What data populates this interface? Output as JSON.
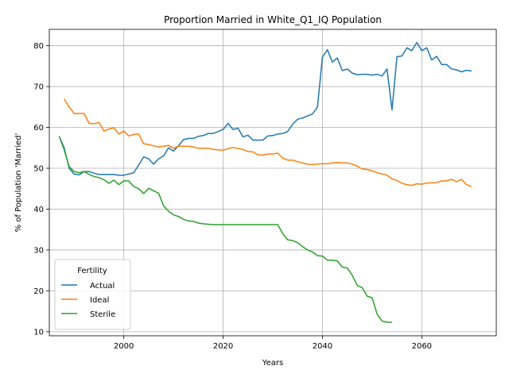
{
  "chart_data": {
    "type": "line",
    "title": "Proportion Married in White_Q1_IQ Population",
    "xlabel": "Years",
    "ylabel": "% of Population 'Married'",
    "xlim": [
      1985,
      2075
    ],
    "ylim": [
      9,
      84
    ],
    "xticks": [
      2000,
      2020,
      2040,
      2060
    ],
    "yticks": [
      10,
      20,
      30,
      40,
      50,
      60,
      70,
      80
    ],
    "grid": true,
    "legend": {
      "title": "Fertility",
      "placement": "lower-left"
    },
    "series": [
      {
        "name": "Actual",
        "color": "#1f77b4",
        "x": [
          1987,
          1988,
          1989,
          1990,
          1991,
          1992,
          1993,
          1994,
          1995,
          1996,
          1997,
          1998,
          1999,
          2000,
          2001,
          2002,
          2003,
          2004,
          2005,
          2006,
          2007,
          2008,
          2009,
          2010,
          2011,
          2012,
          2013,
          2014,
          2015,
          2016,
          2017,
          2018,
          2019,
          2020,
          2021,
          2022,
          2023,
          2024,
          2025,
          2026,
          2027,
          2028,
          2029,
          2030,
          2031,
          2032,
          2033,
          2034,
          2035,
          2036,
          2037,
          2038,
          2039,
          2040,
          2041,
          2042,
          2043,
          2044,
          2045,
          2046,
          2047,
          2048,
          2049,
          2050,
          2051,
          2052,
          2053,
          2054,
          2055,
          2056,
          2057,
          2058,
          2059,
          2060,
          2061,
          2062,
          2063,
          2064,
          2065,
          2066,
          2067,
          2068,
          2069,
          2070
        ],
        "values": [
          57.8,
          55.0,
          50.0,
          48.6,
          48.4,
          49.2,
          49.2,
          48.8,
          48.5,
          48.5,
          48.5,
          48.5,
          48.3,
          48.3,
          48.6,
          48.9,
          50.8,
          52.8,
          52.3,
          51.0,
          52.3,
          53.0,
          55.0,
          54.2,
          55.5,
          57.0,
          57.3,
          57.3,
          57.8,
          58.0,
          58.5,
          58.5,
          59.0,
          59.5,
          61.0,
          59.5,
          59.8,
          57.7,
          58.1,
          56.9,
          56.9,
          56.9,
          57.9,
          58.0,
          58.4,
          58.5,
          59.0,
          60.8,
          62.0,
          62.3,
          62.8,
          63.3,
          65.0,
          77.2,
          79.0,
          76.0,
          77.0,
          73.9,
          74.3,
          73.3,
          72.9,
          73.0,
          73.0,
          72.8,
          73.0,
          72.6,
          74.3,
          64.3,
          77.3,
          77.5,
          79.5,
          78.8,
          80.8,
          78.8,
          79.5,
          76.5,
          77.4,
          75.4,
          75.4,
          74.3,
          74.1,
          73.6,
          74.0,
          73.8
        ]
      },
      {
        "name": "Ideal",
        "color": "#ff7f0e",
        "x": [
          1988,
          1989,
          1990,
          1991,
          1992,
          1993,
          1994,
          1995,
          1996,
          1997,
          1998,
          1999,
          2000,
          2001,
          2002,
          2003,
          2004,
          2005,
          2006,
          2007,
          2008,
          2009,
          2010,
          2011,
          2012,
          2013,
          2014,
          2015,
          2016,
          2017,
          2018,
          2019,
          2020,
          2021,
          2022,
          2023,
          2024,
          2025,
          2026,
          2027,
          2028,
          2029,
          2030,
          2031,
          2032,
          2033,
          2034,
          2035,
          2036,
          2037,
          2038,
          2039,
          2040,
          2041,
          2042,
          2043,
          2044,
          2045,
          2046,
          2047,
          2048,
          2049,
          2050,
          2051,
          2052,
          2053,
          2054,
          2055,
          2056,
          2057,
          2058,
          2059,
          2060,
          2061,
          2062,
          2063,
          2064,
          2065,
          2066,
          2067,
          2068,
          2069,
          2070
        ],
        "values": [
          67.0,
          65.0,
          63.4,
          63.4,
          63.4,
          61.0,
          60.9,
          61.2,
          59.1,
          59.6,
          59.9,
          58.4,
          59.1,
          57.9,
          58.3,
          58.4,
          56.0,
          55.8,
          55.5,
          55.2,
          55.4,
          55.6,
          54.9,
          55.4,
          55.4,
          55.4,
          55.2,
          54.9,
          54.9,
          54.9,
          54.6,
          54.5,
          54.4,
          54.8,
          55.1,
          54.8,
          54.6,
          54.1,
          54.0,
          53.3,
          53.2,
          53.5,
          53.5,
          53.7,
          52.5,
          52.0,
          52.0,
          51.6,
          51.3,
          51.0,
          50.9,
          51.0,
          51.1,
          51.1,
          51.3,
          51.4,
          51.3,
          51.3,
          51.0,
          50.5,
          49.8,
          49.7,
          49.4,
          48.9,
          48.6,
          48.3,
          47.4,
          47.0,
          46.3,
          46.0,
          45.8,
          46.2,
          46.1,
          46.4,
          46.4,
          46.5,
          46.9,
          46.9,
          47.3,
          46.7,
          47.3,
          46.0,
          45.5
        ]
      },
      {
        "name": "Sterile",
        "color": "#2ca02c",
        "x": [
          1987,
          1988,
          1989,
          1990,
          1991,
          1992,
          1993,
          1994,
          1995,
          1996,
          1997,
          1998,
          1999,
          2000,
          2001,
          2002,
          2003,
          2004,
          2005,
          2006,
          2007,
          2008,
          2009,
          2010,
          2011,
          2012,
          2013,
          2014,
          2015,
          2016,
          2017,
          2018,
          2019,
          2020,
          2021,
          2022,
          2023,
          2024,
          2025,
          2026,
          2027,
          2028,
          2029,
          2030,
          2031,
          2032,
          2033,
          2034,
          2035,
          2036,
          2037,
          2038,
          2039,
          2040,
          2041,
          2042,
          2043,
          2044,
          2045,
          2046,
          2047,
          2048,
          2049,
          2050,
          2051,
          2052,
          2053,
          2054
        ],
        "values": [
          57.8,
          54.5,
          50.4,
          49.2,
          48.9,
          49.2,
          48.5,
          48.0,
          47.7,
          47.2,
          46.3,
          47.1,
          46.0,
          46.9,
          46.9,
          45.5,
          45.0,
          43.8,
          45.1,
          44.5,
          43.9,
          40.8,
          39.5,
          38.6,
          38.2,
          37.5,
          37.1,
          37.0,
          36.6,
          36.4,
          36.3,
          36.2,
          36.2,
          36.2,
          36.2,
          36.2,
          36.2,
          36.2,
          36.2,
          36.2,
          36.2,
          36.2,
          36.2,
          36.2,
          36.2,
          34.0,
          32.5,
          32.3,
          31.8,
          30.8,
          30.0,
          29.5,
          28.6,
          28.5,
          27.5,
          27.5,
          27.3,
          25.8,
          25.6,
          23.8,
          21.3,
          20.8,
          18.7,
          18.3,
          14.3,
          12.6,
          12.3,
          12.3
        ]
      }
    ]
  }
}
